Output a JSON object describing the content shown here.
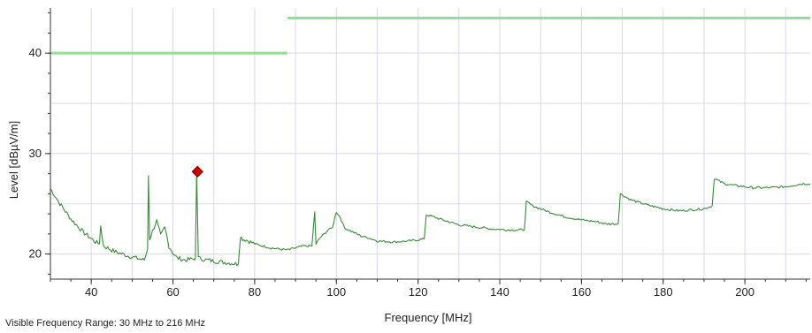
{
  "chart_data": {
    "type": "line",
    "title": "",
    "xlabel": "Frequency [MHz]",
    "ylabel": "Level [dBµV/m]",
    "xlim": [
      30,
      216
    ],
    "ylim": [
      17.5,
      44.5
    ],
    "x_ticks": [
      40,
      60,
      80,
      100,
      120,
      140,
      160,
      180,
      200
    ],
    "y_ticks": [
      20,
      30,
      40
    ],
    "grid": true,
    "colors": {
      "limit_line": "#90e090",
      "trace": "#3a8a3a",
      "marker": "#cc0000",
      "grid": "#d8d8ee"
    },
    "limit_lines": [
      {
        "x": [
          30,
          88
        ],
        "y": [
          40,
          40
        ]
      },
      {
        "x": [
          88,
          216
        ],
        "y": [
          43.5,
          43.5
        ]
      }
    ],
    "series": [
      {
        "x": [
          30,
          32,
          35,
          38,
          41,
          42,
          42.3,
          43,
          46,
          50,
          53,
          53.8,
          54,
          54.3,
          55,
          56,
          57,
          58,
          59,
          60,
          61,
          63,
          65,
          65.5,
          65.8,
          66.2,
          67,
          70,
          72,
          74,
          76,
          76.5,
          77,
          78,
          80,
          84,
          88,
          90,
          92,
          94,
          94.7,
          95,
          96,
          98,
          99,
          100,
          101,
          102,
          104,
          106,
          108,
          110,
          114,
          118,
          121.5,
          122,
          123,
          126,
          130,
          134,
          138,
          142,
          146,
          146.5,
          148,
          152,
          156,
          160,
          164,
          166,
          169,
          169.5,
          172,
          176,
          180,
          184,
          187,
          190,
          192,
          192.5,
          195,
          198,
          202,
          206,
          210,
          214,
          216
        ],
        "y": [
          26.5,
          25.2,
          23.5,
          22.2,
          21.2,
          21.0,
          22.8,
          20.8,
          20.2,
          19.7,
          19.4,
          20.5,
          27.8,
          21.5,
          22.3,
          23.3,
          21.8,
          22.7,
          20.8,
          20.1,
          19.6,
          19.4,
          19.5,
          19.6,
          28.2,
          19.6,
          19.5,
          19.3,
          19.2,
          19.1,
          19.0,
          21.8,
          21.5,
          21.4,
          21.0,
          20.6,
          20.4,
          20.6,
          20.8,
          20.8,
          24.2,
          21.0,
          21.6,
          22.4,
          22.6,
          24.2,
          23.6,
          22.6,
          22.2,
          21.8,
          21.6,
          21.3,
          21.2,
          21.3,
          21.5,
          23.9,
          23.8,
          23.4,
          22.9,
          22.7,
          22.5,
          22.4,
          22.4,
          25.2,
          24.8,
          24.2,
          23.7,
          23.4,
          23.2,
          23.0,
          23.0,
          26.0,
          25.4,
          24.9,
          24.5,
          24.3,
          24.4,
          24.5,
          24.8,
          27.5,
          27.0,
          26.8,
          26.6,
          26.6,
          26.7,
          27.0,
          27.0
        ]
      }
    ],
    "marker": {
      "x": 66,
      "y": 28.2
    }
  },
  "footer": {
    "visible_range": "Visible Frequency Range: 30 MHz to 216 MHz"
  }
}
